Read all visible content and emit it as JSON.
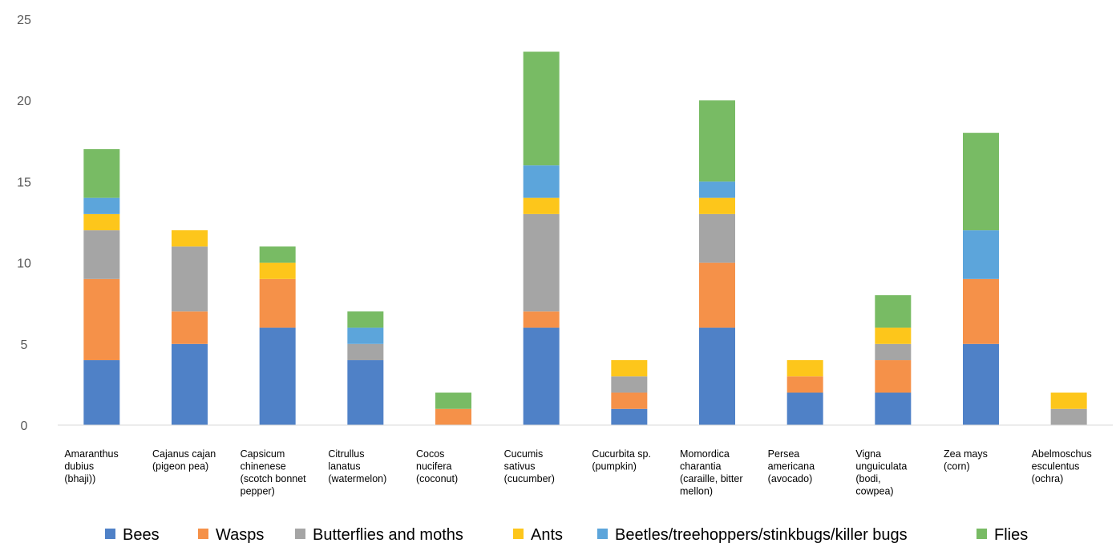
{
  "chart_data": {
    "type": "bar",
    "stacked": true,
    "ylim": [
      0,
      25
    ],
    "yticks": [
      0,
      5,
      10,
      15,
      20,
      25
    ],
    "grid": false,
    "legend_position": "bottom",
    "categories": [
      [
        "Amaranthus",
        "dubius",
        "(bhaji))"
      ],
      [
        "Cajanus cajan",
        "(pigeon pea)"
      ],
      [
        "Capsicum",
        "chinenese",
        "(scotch bonnet",
        "pepper)"
      ],
      [
        "Citrullus",
        "lanatus",
        "(watermelon)"
      ],
      [
        "Cocos",
        "nucifera",
        "(coconut)"
      ],
      [
        "Cucumis",
        "sativus",
        "(cucumber)"
      ],
      [
        "Cucurbita sp.",
        "(pumpkin)"
      ],
      [
        "Momordica",
        "charantia",
        "(caraille, bitter",
        "mellon)"
      ],
      [
        "Persea",
        "americana",
        "(avocado)"
      ],
      [
        "Vigna",
        "unguiculata",
        "(bodi,",
        "cowpea)"
      ],
      [
        "Zea mays",
        "(corn)"
      ],
      [
        "Abelmoschus",
        "esculentus",
        "(ochra)"
      ]
    ],
    "series": [
      {
        "name": "Bees",
        "color": "#4F81C7",
        "values": [
          4,
          5,
          6,
          4,
          0,
          6,
          1,
          6,
          2,
          2,
          5,
          0
        ]
      },
      {
        "name": "Wasps",
        "color": "#F59149",
        "values": [
          5,
          2,
          3,
          0,
          1,
          1,
          1,
          4,
          1,
          2,
          4,
          0
        ]
      },
      {
        "name": "Butterflies and moths",
        "color": "#A5A5A5",
        "values": [
          3,
          4,
          0,
          1,
          0,
          6,
          1,
          3,
          0,
          1,
          0,
          1
        ]
      },
      {
        "name": "Ants",
        "color": "#FDC61B",
        "values": [
          1,
          1,
          1,
          0,
          0,
          1,
          1,
          1,
          1,
          1,
          0,
          1
        ]
      },
      {
        "name": "Beetles/treehoppers/stinkbugs/killer bugs",
        "color": "#5CA5DB",
        "values": [
          1,
          0,
          0,
          1,
          0,
          2,
          0,
          1,
          0,
          0,
          3,
          0
        ]
      },
      {
        "name": "Flies",
        "color": "#78BB64",
        "values": [
          3,
          0,
          1,
          1,
          1,
          7,
          0,
          5,
          0,
          2,
          6,
          0
        ]
      }
    ]
  }
}
